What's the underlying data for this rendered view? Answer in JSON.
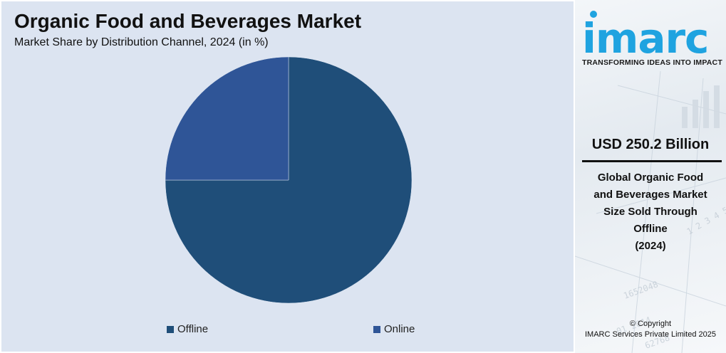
{
  "chart_data": {
    "type": "pie",
    "title": "Organic Food and Beverages Market",
    "subtitle": "Market Share by Distribution Channel, 2024 (in %)",
    "categories": [
      "Offline",
      "Online"
    ],
    "values": [
      75,
      25
    ],
    "colors": [
      "#1f4e79",
      "#2f5597"
    ],
    "legend_position": "bottom",
    "background": "#dce4f1"
  },
  "sidebar": {
    "logo_text": "imarc",
    "tagline": "TRANSFORMING IDEAS INTO IMPACT",
    "stat_value": "USD 250.2 Billion",
    "stat_desc_lines": [
      "Global Organic Food",
      "and Beverages Market",
      "Size Sold Through",
      "Offline",
      "(2024)"
    ],
    "copyright_lines": [
      "© Copyright",
      "IMARC Services Private Limited 2025"
    ],
    "colors": {
      "logo": "#1fa3e0"
    }
  }
}
